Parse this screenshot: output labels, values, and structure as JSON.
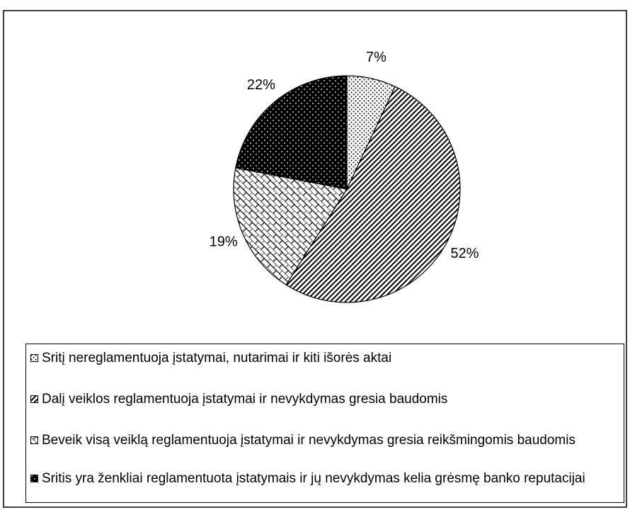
{
  "chart_data": {
    "type": "pie",
    "categories": [
      "Sritį nereglamentuoja įstatymai, nutarimai ir kiti išorės aktai",
      "Dalį veiklos reglamentuoja įstatymai ir nevykdymas gresia baudomis",
      "Beveik visą veiklą reglamentuoja įstatymai ir nevykdymas gresia reikšmingomis baudomis",
      "Sritis yra ženkliai reglamentuota įstatymais ir jų nevykdymas kelia grėsmę banko reputacijai"
    ],
    "values": [
      7,
      52,
      19,
      22
    ],
    "value_labels": [
      "7%",
      "52%",
      "19%",
      "22%"
    ]
  }
}
